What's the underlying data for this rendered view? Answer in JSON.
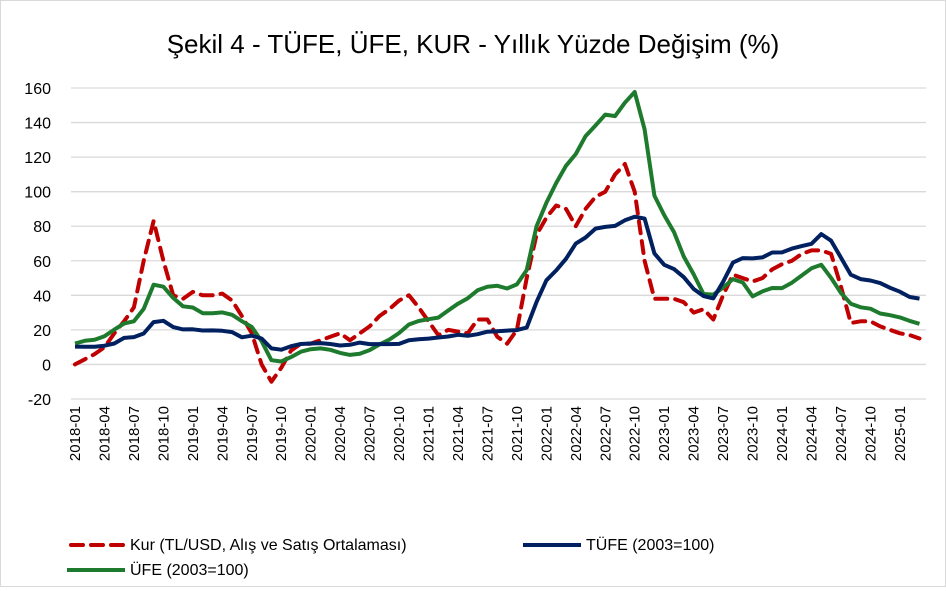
{
  "chart_data": {
    "type": "line",
    "title": "Şekil 4 - TÜFE, ÜFE, KUR - Yıllık Yüzde Değişim (%)",
    "xlabel": "",
    "ylabel": "",
    "ylim": [
      -20,
      160
    ],
    "yticks": [
      "-20",
      "0",
      "20",
      "40",
      "60",
      "80",
      "100",
      "120",
      "140",
      "160"
    ],
    "ytick_values": [
      -20,
      0,
      20,
      40,
      60,
      80,
      100,
      120,
      140,
      160
    ],
    "grid": true,
    "legend_position": "bottom",
    "start": "2018-01",
    "xtick_labels": [
      "2018-01",
      "2018-04",
      "2018-07",
      "2018-10",
      "2019-01",
      "2019-04",
      "2019-07",
      "2019-10",
      "2020-01",
      "2020-04",
      "2020-07",
      "2020-10",
      "2021-01",
      "2021-04",
      "2021-07",
      "2021-10",
      "2022-01",
      "2022-04",
      "2022-07",
      "2022-10",
      "2023-01",
      "2023-04",
      "2023-07",
      "2023-10",
      "2024-01",
      "2024-04",
      "2024-07",
      "2024-10",
      "2025-01"
    ],
    "series": [
      {
        "name": "Kur (TL/USD, Alış ve Satış Ortalaması)",
        "color": "#c00000",
        "dash": true,
        "values": [
          0,
          3,
          6,
          10,
          18,
          25,
          33,
          60,
          83,
          60,
          40,
          38,
          42,
          40,
          40,
          41,
          37,
          28,
          18,
          0,
          -10,
          -2,
          8,
          12,
          12,
          14,
          16,
          18,
          14,
          18,
          22,
          28,
          32,
          37,
          40,
          33,
          25,
          17,
          20,
          19,
          18,
          26,
          26,
          16,
          12,
          20,
          50,
          75,
          85,
          92,
          90,
          80,
          90,
          97,
          100,
          110,
          116,
          100,
          60,
          38,
          38,
          38,
          36,
          30,
          32,
          26,
          40,
          52,
          50,
          48,
          50,
          55,
          58,
          60,
          64,
          66,
          66,
          64,
          45,
          24,
          25,
          25,
          22,
          20,
          18,
          17,
          15
        ]
      },
      {
        "name": "TÜFE (2003=100)",
        "color": "#002060",
        "dash": false,
        "values": [
          10.35,
          10.26,
          10.23,
          10.85,
          12.15,
          15.39,
          15.85,
          17.9,
          24.52,
          25.24,
          21.62,
          20.3,
          20.35,
          19.67,
          19.71,
          19.5,
          18.71,
          15.72,
          16.65,
          15.01,
          9.26,
          8.55,
          10.56,
          11.84,
          12.15,
          12.37,
          11.86,
          10.94,
          11.39,
          12.62,
          11.76,
          11.77,
          11.75,
          11.89,
          14.03,
          14.6,
          14.97,
          15.61,
          16.19,
          17.14,
          16.59,
          17.53,
          18.95,
          19.25,
          19.58,
          19.89,
          21.31,
          36.08,
          48.69,
          54.44,
          61.14,
          69.97,
          73.5,
          78.62,
          79.6,
          80.21,
          83.45,
          85.51,
          84.39,
          64.27,
          57.68,
          55.18,
          50.51,
          43.68,
          39.59,
          38.21,
          47.83,
          58.94,
          61.53,
          61.36,
          61.98,
          64.77,
          64.86,
          67.07,
          68.5,
          69.8,
          75.45,
          71.6,
          61.78,
          51.97,
          49.38,
          48.58,
          47.09,
          44.38,
          42.12,
          39.05,
          38.1
        ]
      },
      {
        "name": "ÜFE (2003=100)",
        "color": "#1e7b2e",
        "dash": false,
        "values": [
          12.14,
          13.71,
          14.28,
          16.37,
          20.16,
          23.71,
          25.0,
          32.13,
          46.15,
          45.01,
          38.54,
          33.64,
          32.93,
          29.64,
          29.64,
          30.12,
          28.71,
          25.04,
          21.66,
          13.45,
          2.45,
          1.7,
          4.26,
          7.36,
          8.84,
          9.26,
          8.5,
          6.71,
          5.53,
          6.17,
          8.33,
          11.53,
          14.33,
          18.2,
          23.11,
          25.15,
          26.16,
          27.09,
          31.2,
          35.17,
          38.33,
          42.89,
          44.92,
          45.52,
          43.96,
          46.31,
          54.62,
          79.89,
          93.53,
          105.01,
          114.97,
          121.82,
          132.16,
          138.31,
          144.61,
          143.75,
          151.5,
          157.69,
          136.02,
          97.72,
          86.46,
          76.61,
          62.43,
          52.11,
          40.76,
          40.42,
          44.5,
          49.41,
          47.44,
          39.39,
          42.25,
          44.22,
          44.2,
          47.29,
          51.47,
          55.66,
          57.68,
          50.09,
          41.37,
          35.17,
          33.09,
          32.24,
          29.47,
          28.52,
          27.2,
          25.21,
          23.5
        ]
      }
    ]
  }
}
